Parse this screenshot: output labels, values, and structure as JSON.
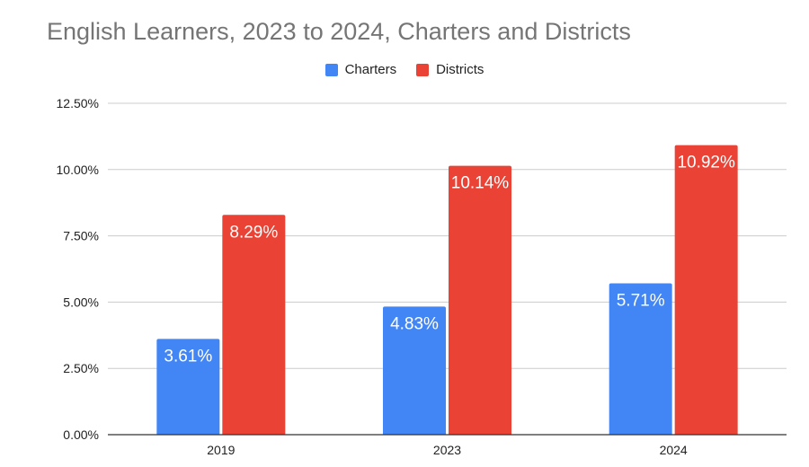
{
  "chart_data": {
    "type": "bar",
    "title": "English Learners, 2023 to 2024, Charters and Districts",
    "categories": [
      "2019",
      "2023",
      "2024"
    ],
    "series": [
      {
        "name": "Charters",
        "color": "#4285f4",
        "values": [
          3.61,
          4.83,
          5.71
        ],
        "labels": [
          "3.61%",
          "4.83%",
          "5.71%"
        ]
      },
      {
        "name": "Districts",
        "color": "#ea4335",
        "values": [
          8.29,
          10.14,
          10.92
        ],
        "labels": [
          "8.29%",
          "10.14%",
          "10.92%"
        ]
      }
    ],
    "ylim": [
      0,
      12.5
    ],
    "yticks": [
      0,
      2.5,
      5,
      7.5,
      10,
      12.5
    ],
    "ytick_labels": [
      "0.00%",
      "2.50%",
      "5.00%",
      "7.50%",
      "10.00%",
      "12.50%"
    ],
    "xlabel": "",
    "ylabel": "",
    "grid": true,
    "legend_position": "top-center"
  }
}
